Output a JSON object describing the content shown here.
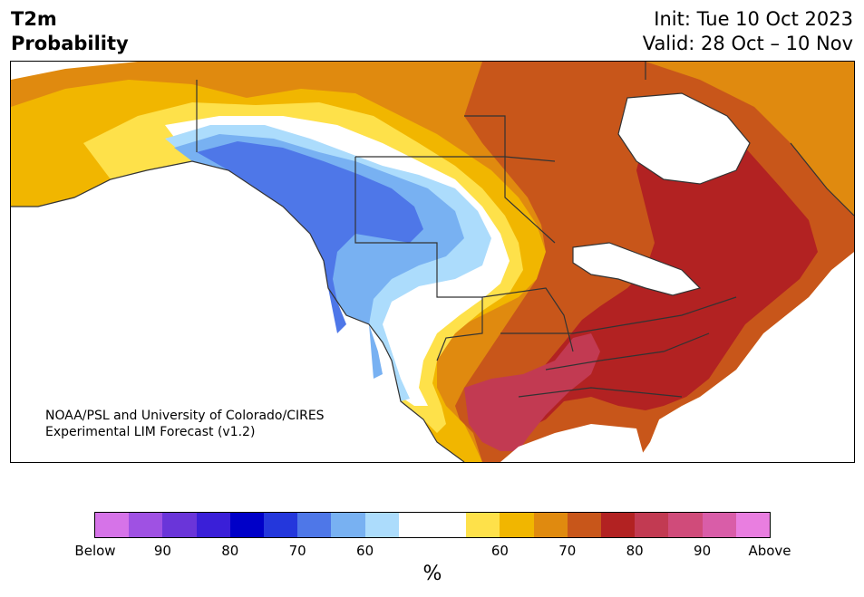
{
  "header": {
    "variable": "T2m",
    "product": "Probability",
    "init": "Init: Tue 10 Oct 2023",
    "valid": "Valid: 28 Oct – 10 Nov"
  },
  "map": {
    "credit_line1": "NOAA/PSL and University of Colorado/CIRES",
    "credit_line2": "Experimental LIM Forecast (v1.2)"
  },
  "colorbar": {
    "unit": "%",
    "colors": [
      "#d673e8",
      "#9f51e3",
      "#6a35d9",
      "#3a1fd8",
      "#0000c8",
      "#2437dc",
      "#4e77e8",
      "#78b1f2",
      "#acdcfc",
      "#ffffff",
      "#ffffff",
      "#fee14a",
      "#f1b600",
      "#e08a0f",
      "#c8561a",
      "#b22222",
      "#c23a52",
      "#d04b7a",
      "#d95da8",
      "#e97ee0"
    ],
    "tick_labels": [
      "Below",
      "90",
      "80",
      "70",
      "60",
      "60",
      "70",
      "80",
      "90",
      "Above"
    ]
  }
}
